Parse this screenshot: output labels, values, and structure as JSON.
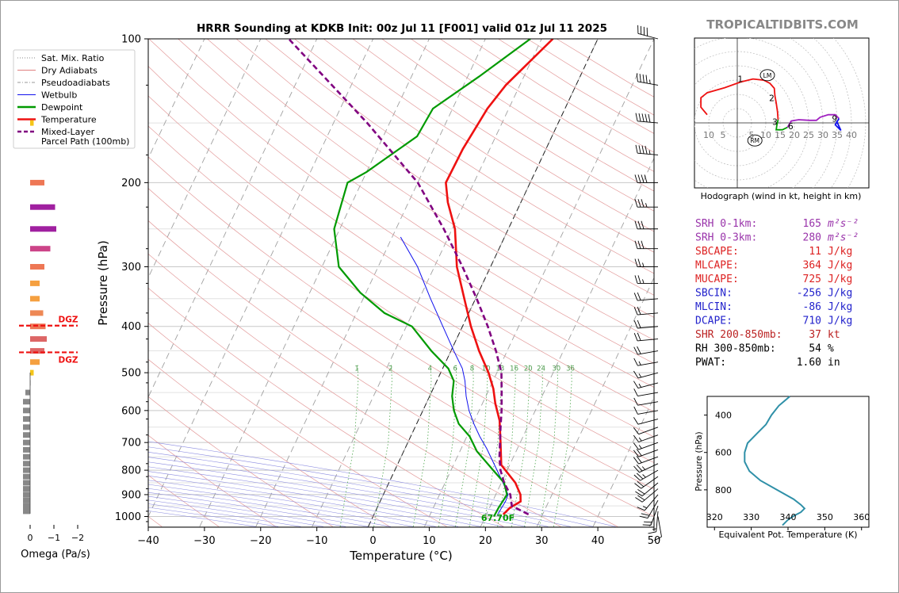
{
  "brand": "TROPICALTIDBITS.COM",
  "chart_data": [
    {
      "type": "line",
      "name": "skewt",
      "title": "HRRR Sounding at KDKB Init: 00z Jul 11 [F001] valid 01z Jul 11 2025",
      "xlabel": "Temperature (°C)",
      "ylabel": "Pressure (hPa)",
      "xlim": [
        -40,
        50
      ],
      "ylim": [
        1050,
        100
      ],
      "yscale": "log",
      "xticks": [
        -40,
        -30,
        -20,
        -10,
        0,
        10,
        20,
        30,
        40,
        50
      ],
      "yticks": [
        100,
        200,
        300,
        400,
        500,
        600,
        700,
        800,
        900,
        1000
      ],
      "surface_label": "67.70F",
      "legend": [
        {
          "label": "Sat. Mix. Ratio",
          "color": "#888888",
          "style": "dotted"
        },
        {
          "label": "Dry Adiabats",
          "color": "#e08080",
          "style": "solid-thin"
        },
        {
          "label": "Pseudoadiabats",
          "color": "#999999",
          "style": "dashdot-thin"
        },
        {
          "label": "Wetbulb",
          "color": "#1010ee",
          "style": "solid-thin"
        },
        {
          "label": "Dewpoint",
          "color": "#009a00",
          "style": "solid"
        },
        {
          "label": "Temperature",
          "color": "#ee1111",
          "style": "solid"
        },
        {
          "label": "Mixed-Layer\nParcel Path (100mb)",
          "color": "#800080",
          "style": "dashed"
        }
      ],
      "mixing_ratio_labels": [
        "1",
        "2",
        "4",
        "6",
        "8",
        "10",
        "13",
        "16",
        "20",
        "24",
        "30",
        "36"
      ],
      "series": [
        {
          "name": "Temperature",
          "color": "#ee1111",
          "points": [
            [
              23.0,
              990
            ],
            [
              23.6,
              960
            ],
            [
              25.0,
              930
            ],
            [
              24.4,
              900
            ],
            [
              22.5,
              850
            ],
            [
              18.5,
              780
            ],
            [
              16.5,
              700
            ],
            [
              14.5,
              630
            ],
            [
              12.3,
              580
            ],
            [
              10.7,
              540
            ],
            [
              8.5,
              500
            ],
            [
              5.0,
              450
            ],
            [
              1.5,
              400
            ],
            [
              -2.0,
              350
            ],
            [
              -6.0,
              300
            ],
            [
              -9.5,
              250
            ],
            [
              -13.0,
              220
            ],
            [
              -15.0,
              200
            ],
            [
              -14.8,
              170
            ],
            [
              -13.8,
              140
            ],
            [
              -12.5,
              125
            ],
            [
              -8.0,
              100
            ]
          ]
        },
        {
          "name": "Dewpoint",
          "color": "#009a00",
          "points": [
            [
              21.5,
              1000
            ],
            [
              21.6,
              960
            ],
            [
              22.0,
              900
            ],
            [
              20.5,
              850
            ],
            [
              17.5,
              800
            ],
            [
              13.0,
              730
            ],
            [
              10.5,
              680
            ],
            [
              7.5,
              640
            ],
            [
              5.5,
              600
            ],
            [
              4.0,
              560
            ],
            [
              3.0,
              520
            ],
            [
              1.0,
              490
            ],
            [
              -3.5,
              450
            ],
            [
              -9.0,
              400
            ],
            [
              -15.0,
              375
            ],
            [
              -21.0,
              340
            ],
            [
              -27.0,
              300
            ],
            [
              -31.0,
              250
            ],
            [
              -32.5,
              200
            ],
            [
              -30.0,
              190
            ],
            [
              -24.0,
              160
            ],
            [
              -23.5,
              140
            ],
            [
              -18.0,
              120
            ],
            [
              -12.0,
              100
            ]
          ]
        },
        {
          "name": "Wetbulb",
          "color": "#1010ee",
          "points": [
            [
              22.0,
              990
            ],
            [
              22.3,
              930
            ],
            [
              22.2,
              900
            ],
            [
              20.3,
              850
            ],
            [
              17.3,
              780
            ],
            [
              14.5,
              720
            ],
            [
              12.3,
              680
            ],
            [
              10.2,
              640
            ],
            [
              8.2,
              600
            ],
            [
              6.5,
              560
            ],
            [
              5.0,
              520
            ],
            [
              3.5,
              490
            ],
            [
              0.5,
              450
            ],
            [
              -3.5,
              400
            ],
            [
              -8.0,
              350
            ],
            [
              -13.0,
              300
            ],
            [
              -18.5,
              260
            ]
          ]
        },
        {
          "name": "Mixed-Layer Parcel Path (100mb)",
          "color": "#800080",
          "points": [
            [
              27.5,
              990
            ],
            [
              23.8,
              950
            ],
            [
              22.6,
              900
            ],
            [
              20.5,
              850
            ],
            [
              18.8,
              800
            ],
            [
              17.5,
              750
            ],
            [
              16.4,
              700
            ],
            [
              15.2,
              650
            ],
            [
              14.0,
              600
            ],
            [
              12.5,
              550
            ],
            [
              10.8,
              500
            ],
            [
              8.0,
              450
            ],
            [
              4.5,
              400
            ],
            [
              0.2,
              350
            ],
            [
              -5.0,
              300
            ],
            [
              -11.5,
              250
            ],
            [
              -20.0,
              200
            ],
            [
              -34.0,
              150
            ],
            [
              -55.0,
              100
            ]
          ]
        }
      ],
      "wind_barbs_pressure": [
        1000,
        975,
        950,
        925,
        900,
        875,
        850,
        825,
        800,
        775,
        750,
        725,
        700,
        675,
        650,
        625,
        600,
        575,
        550,
        525,
        500,
        475,
        450,
        425,
        400,
        375,
        350,
        325,
        300,
        275,
        250,
        225,
        200,
        175,
        150,
        125,
        100
      ],
      "wind_barbs_speed_kt": [
        10,
        15,
        20,
        20,
        15,
        20,
        20,
        20,
        25,
        25,
        20,
        20,
        15,
        15,
        10,
        10,
        10,
        10,
        10,
        15,
        15,
        15,
        20,
        20,
        20,
        20,
        20,
        25,
        25,
        30,
        30,
        35,
        40,
        45,
        50,
        45,
        40
      ],
      "wind_barbs_dir_deg": [
        170,
        185,
        200,
        210,
        220,
        230,
        230,
        235,
        240,
        245,
        250,
        250,
        250,
        250,
        250,
        255,
        260,
        260,
        260,
        255,
        255,
        260,
        260,
        265,
        265,
        265,
        265,
        270,
        270,
        270,
        270,
        270,
        270,
        275,
        275,
        280,
        285
      ]
    },
    {
      "type": "bar",
      "name": "omega",
      "xlabel": "Omega (Pa/s)",
      "xticks": [
        "0",
        "−1",
        "−2"
      ],
      "dgz_label": "DGZ",
      "dgz_pressures": [
        400,
        455
      ],
      "pressure": [
        150,
        200,
        225,
        250,
        275,
        300,
        325,
        350,
        375,
        400,
        425,
        450,
        475,
        500,
        525,
        550,
        575,
        600,
        625,
        650,
        675,
        700,
        725,
        750,
        775,
        800,
        825,
        850,
        875,
        900,
        925,
        950,
        975
      ],
      "values": [
        -0.15,
        -0.6,
        -1.05,
        -1.1,
        -0.85,
        -0.6,
        -0.4,
        -0.4,
        -0.55,
        -0.65,
        -0.7,
        -0.6,
        -0.4,
        -0.15,
        -0.02,
        0.2,
        0.3,
        0.3,
        0.3,
        0.3,
        0.3,
        0.3,
        0.3,
        0.3,
        0.3,
        0.3,
        0.3,
        0.3,
        0.3,
        0.3,
        0.3,
        0.3,
        0.3
      ],
      "colors": [
        "#f5c518",
        "#ee7755",
        "#a020a0",
        "#a020a0",
        "#cc4488",
        "#ee7755",
        "#f5a040",
        "#f5a040",
        "#ee8855",
        "#ee7755",
        "#dd6666",
        "#dd6666",
        "#f5a040",
        "#f5c518",
        "#888888",
        "#888888",
        "#888888",
        "#888888",
        "#888888",
        "#888888",
        "#888888",
        "#888888",
        "#888888",
        "#888888",
        "#888888",
        "#888888",
        "#888888",
        "#888888",
        "#888888",
        "#888888",
        "#888888",
        "#888888",
        "#888888"
      ]
    },
    {
      "type": "line",
      "name": "hodograph",
      "caption": "Hodograph (wind in kt, height in km)",
      "ring_labels_left": [
        "10",
        "5"
      ],
      "ring_labels_right": [
        "5",
        "10",
        "15",
        "20",
        "25",
        "30",
        "35",
        "40"
      ],
      "height_labels": [
        {
          "km": "1",
          "u": 1,
          "v": 7
        },
        {
          "km": "2",
          "u": 6,
          "v": 4
        },
        {
          "km": "3",
          "u": 6.5,
          "v": 0.2
        },
        {
          "km": "6",
          "u": 9,
          "v": -0.5
        },
        {
          "km": "9",
          "u": 16,
          "v": 0.7
        }
      ],
      "markers": [
        {
          "label": "LM",
          "u": 4.8,
          "v": 7.6
        },
        {
          "label": "RM",
          "u": 2.8,
          "v": -2.8
        }
      ],
      "segments": [
        {
          "color": "#ee1111",
          "points": [
            [
              -4.8,
              1.3
            ],
            [
              -5.8,
              2.5
            ],
            [
              -5.8,
              4.0
            ],
            [
              -4.8,
              4.8
            ],
            [
              -2.0,
              5.6
            ],
            [
              0.5,
              6.5
            ],
            [
              2.5,
              7.0
            ],
            [
              4.2,
              6.8
            ],
            [
              5.2,
              6.3
            ],
            [
              5.9,
              5.5
            ],
            [
              6.0,
              4.3
            ],
            [
              6.2,
              3.2
            ],
            [
              6.4,
              1.8
            ],
            [
              6.5,
              0.5
            ]
          ]
        },
        {
          "color": "#009a00",
          "points": [
            [
              6.5,
              0.5
            ],
            [
              6.3,
              -0.4
            ],
            [
              6.2,
              -1.1
            ],
            [
              7.2,
              -1.1
            ],
            [
              8.0,
              -0.7
            ]
          ]
        },
        {
          "color": "#a020c0",
          "points": [
            [
              8.0,
              -0.7
            ],
            [
              8.6,
              0.3
            ],
            [
              9.8,
              0.5
            ],
            [
              11.5,
              0.4
            ],
            [
              12.6,
              0.4
            ],
            [
              13.2,
              0.9
            ],
            [
              14.5,
              1.3
            ],
            [
              15.6,
              1.3
            ],
            [
              16.2,
              0.7
            ]
          ]
        },
        {
          "color": "#1010ee",
          "points": [
            [
              16.2,
              0.7
            ],
            [
              15.6,
              -0.3
            ],
            [
              16.5,
              -1.2
            ],
            [
              16.0,
              -0.1
            ],
            [
              15.8,
              0.3
            ]
          ]
        }
      ]
    },
    {
      "type": "line",
      "name": "theta-e",
      "xlabel": "Equivalent Pot. Temperature (K)",
      "ylabel": "Pressure (hPa)",
      "xlim": [
        318,
        362
      ],
      "ylim": [
        1000,
        300
      ],
      "xticks": [
        320,
        330,
        340,
        350,
        360
      ],
      "yticks": [
        400,
        600,
        800
      ],
      "x": [
        340.5,
        337.5,
        335.5,
        334.0,
        331.5,
        329.0,
        328.2,
        328.2,
        329.5,
        332.5,
        337.0,
        341.5,
        343.5,
        344.5,
        343.5,
        341.5,
        340.0,
        338.5
      ],
      "p": [
        300,
        350,
        400,
        450,
        500,
        550,
        600,
        650,
        700,
        750,
        800,
        850,
        880,
        900,
        920,
        940,
        960,
        990
      ],
      "color": "#2f90a8"
    }
  ],
  "params": [
    {
      "label": "SRH 0-1km:",
      "value": "165",
      "unit": "m²s⁻²",
      "color": "#9933aa"
    },
    {
      "label": "SRH 0-3km:",
      "value": "280",
      "unit": "m²s⁻²",
      "color": "#9933aa"
    },
    {
      "label": "SBCAPE:",
      "value": "11",
      "unit": "J/kg",
      "color": "#dd2222"
    },
    {
      "label": "MLCAPE:",
      "value": "364",
      "unit": "J/kg",
      "color": "#dd2222"
    },
    {
      "label": "MUCAPE:",
      "value": "725",
      "unit": "J/kg",
      "color": "#dd2222"
    },
    {
      "label": "SBCIN:",
      "value": "-256",
      "unit": "J/kg",
      "color": "#2222cc"
    },
    {
      "label": "MLCIN:",
      "value": "-86",
      "unit": "J/kg",
      "color": "#2222cc"
    },
    {
      "label": "DCAPE:",
      "value": "710",
      "unit": "J/kg",
      "color": "#2222cc"
    },
    {
      "label": "SHR 200-850mb:",
      "value": "37",
      "unit": "kt",
      "color": "#bb2222"
    },
    {
      "label": "RH 300-850mb:",
      "value": "54",
      "unit": "%",
      "color": "#000000"
    },
    {
      "label": "PWAT:",
      "value": "1.60",
      "unit": "in",
      "color": "#000000"
    }
  ]
}
